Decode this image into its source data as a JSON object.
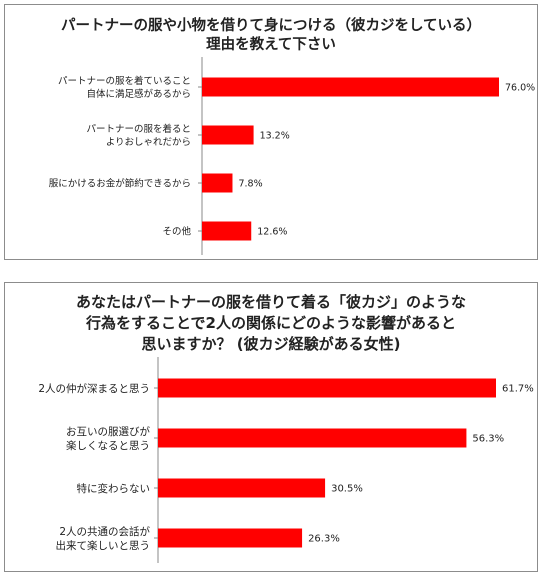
{
  "charts": [
    {
      "title_lines": [
        "パートナーの服や小物を借りて身につける（彼カジをしている）",
        "理由を教えて下さい"
      ],
      "bar_color": "#ff0000"
    },
    {
      "title_lines": [
        "あなたはパートナーの服を借りて着る「彼カジ」のような",
        "行為をすることで2人の関係にどのような影響があると",
        "思いますか？ (彼カジ経験がある女性)"
      ],
      "bar_color": "#ff0000"
    }
  ],
  "chart_data": [
    {
      "type": "bar",
      "orientation": "horizontal",
      "title": "パートナーの服や小物を借りて身につける（彼カジをしている）理由を教えて下さい",
      "categories": [
        [
          "パートナーの服を着ていること",
          "自体に満足感があるから"
        ],
        [
          "パートナーの服を着ると",
          "よりおしゃれだから"
        ],
        [
          "服にかけるお金が節約できるから"
        ],
        [
          "その他"
        ]
      ],
      "values": [
        76.0,
        13.2,
        7.8,
        12.6
      ],
      "value_labels": [
        "76.0%",
        "13.2%",
        "7.8%",
        "12.6%"
      ],
      "unit": "%",
      "xlim": [
        0,
        76.0
      ],
      "grid": false
    },
    {
      "type": "bar",
      "orientation": "horizontal",
      "title": "あなたはパートナーの服を借りて着る「彼カジ」のような行為をすることで2人の関係にどのような影響があると思いますか？ (彼カジ経験がある女性)",
      "categories": [
        [
          "2人の仲が深まると思う"
        ],
        [
          "お互いの服選びが",
          "楽しくなると思う"
        ],
        [
          "特に変わらない"
        ],
        [
          "2人の共通の会話が",
          "出来て楽しいと思う"
        ]
      ],
      "values": [
        61.7,
        56.3,
        30.5,
        26.3
      ],
      "value_labels": [
        "61.7%",
        "56.3%",
        "30.5%",
        "26.3%"
      ],
      "unit": "%",
      "xlim": [
        0,
        61.7
      ],
      "grid": false
    }
  ]
}
